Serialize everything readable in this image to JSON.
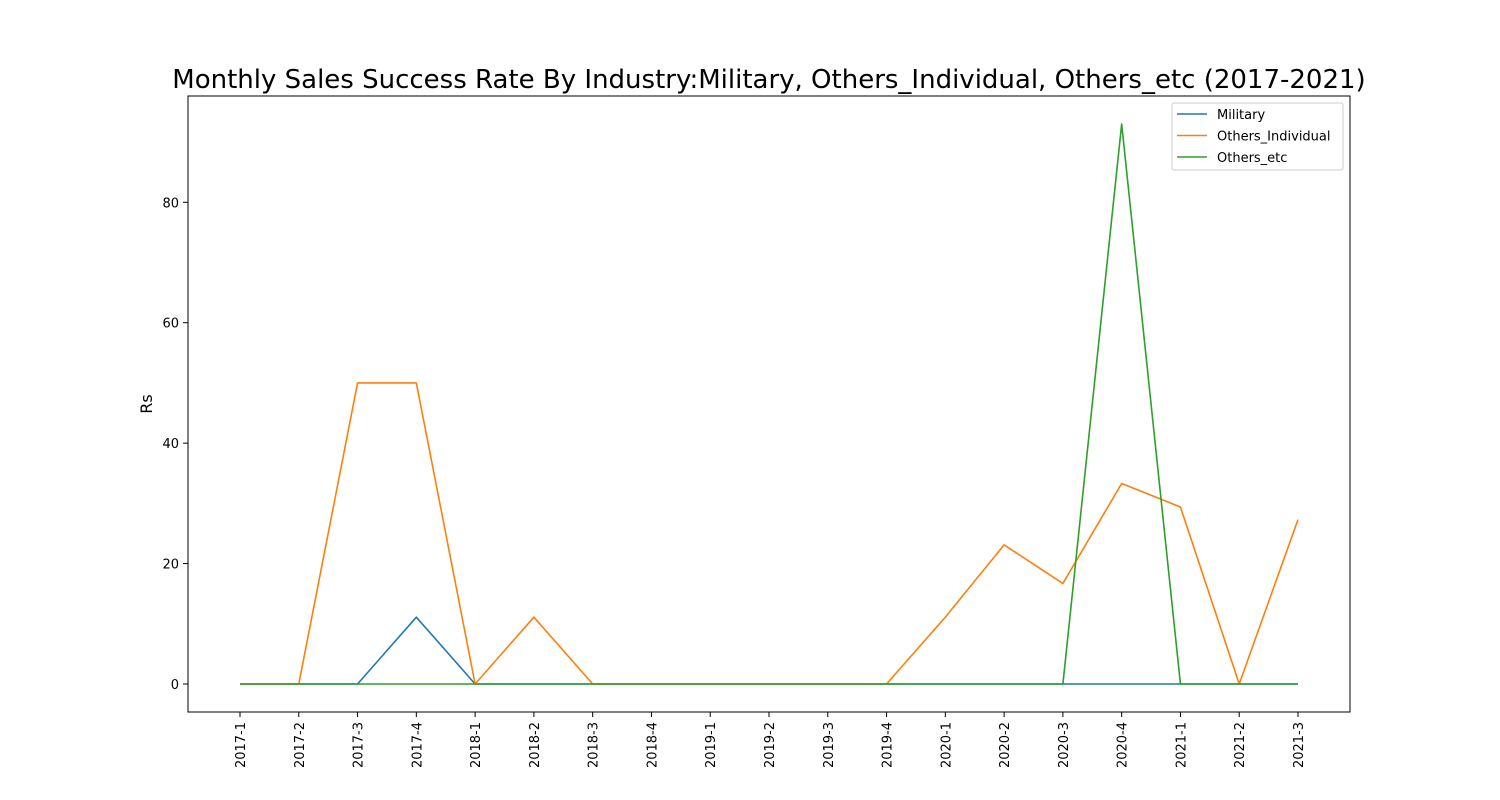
{
  "chart_data": {
    "type": "line",
    "title": "Monthly Sales Success Rate By Industry:Military, Others_Individual, Others_etc (2017-2021)",
    "xlabel": "",
    "ylabel": "Rs",
    "x": [
      "2017-1",
      "2017-2",
      "2017-3",
      "2017-4",
      "2018-1",
      "2018-2",
      "2018-3",
      "2018-4",
      "2019-1",
      "2019-2",
      "2019-3",
      "2019-4",
      "2020-1",
      "2020-2",
      "2020-3",
      "2020-4",
      "2021-1",
      "2021-2",
      "2021-3"
    ],
    "ylim": [
      -4.65,
      97.65
    ],
    "yticks": [
      0,
      20,
      40,
      60,
      80
    ],
    "grid": false,
    "legend": "top-right",
    "series": [
      {
        "name": "Military",
        "color": "#1f77b4",
        "values": [
          0,
          0,
          0,
          11.1,
          0,
          0,
          0,
          0,
          0,
          0,
          0,
          0,
          0,
          0,
          0,
          0,
          0,
          0,
          0
        ]
      },
      {
        "name": "Others_Individual",
        "color": "#ff7f0e",
        "values": [
          0,
          0,
          50,
          50,
          0,
          11.1,
          0,
          0,
          0,
          0,
          0,
          0,
          11.1,
          23.1,
          16.7,
          33.3,
          29.4,
          0,
          27.3
        ]
      },
      {
        "name": "Others_etc",
        "color": "#2ca02c",
        "values": [
          0,
          0,
          0,
          0,
          0,
          0,
          0,
          0,
          0,
          0,
          0,
          0,
          0,
          0,
          0,
          93.0,
          0,
          0,
          0
        ]
      }
    ]
  }
}
